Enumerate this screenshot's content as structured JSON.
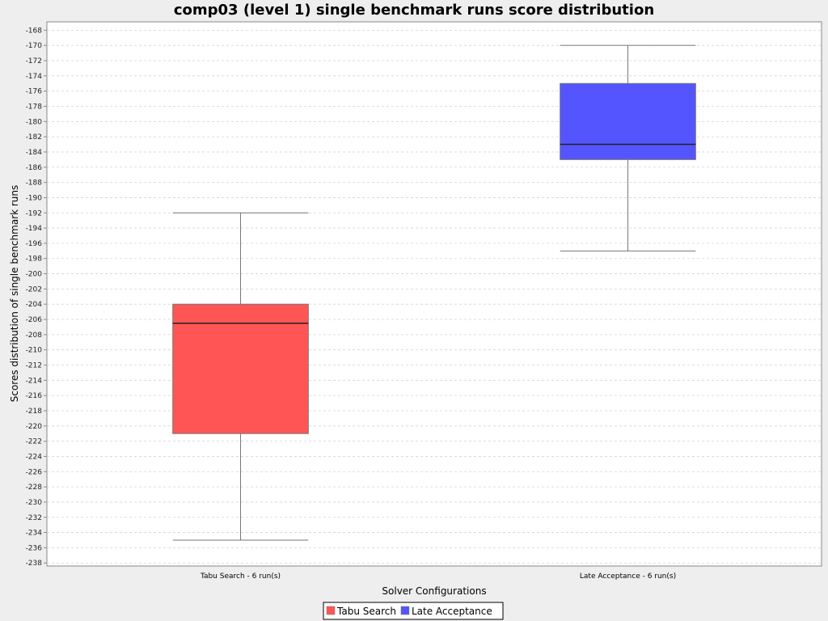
{
  "chart_data": {
    "type": "boxplot",
    "title": "comp03 (level 1) single benchmark runs score distribution",
    "xlabel": "Solver Configurations",
    "ylabel": "Scores distribution of single benchmark runs",
    "ylim": [
      -238.4,
      -166.9
    ],
    "yticks": [
      -168,
      -170,
      -172,
      -174,
      -176,
      -178,
      -180,
      -182,
      -184,
      -186,
      -188,
      -190,
      -192,
      -194,
      -196,
      -198,
      -200,
      -202,
      -204,
      -206,
      -208,
      -210,
      -212,
      -214,
      -216,
      -218,
      -220,
      -222,
      -224,
      -226,
      -228,
      -230,
      -232,
      -234,
      -236,
      -238
    ],
    "grid": true,
    "legend_position": "bottom",
    "categories": [
      "Tabu Search - 6 run(s)",
      "Late Acceptance - 6 run(s)"
    ],
    "series": [
      {
        "name": "Tabu Search",
        "color": "#ff5555",
        "min": -235,
        "q1": -221,
        "median": -206.5,
        "q3": -204,
        "max": -192
      },
      {
        "name": "Late Acceptance",
        "color": "#5555ff",
        "min": -197,
        "q1": -185,
        "median": -183,
        "q3": -175,
        "max": -170
      }
    ]
  }
}
